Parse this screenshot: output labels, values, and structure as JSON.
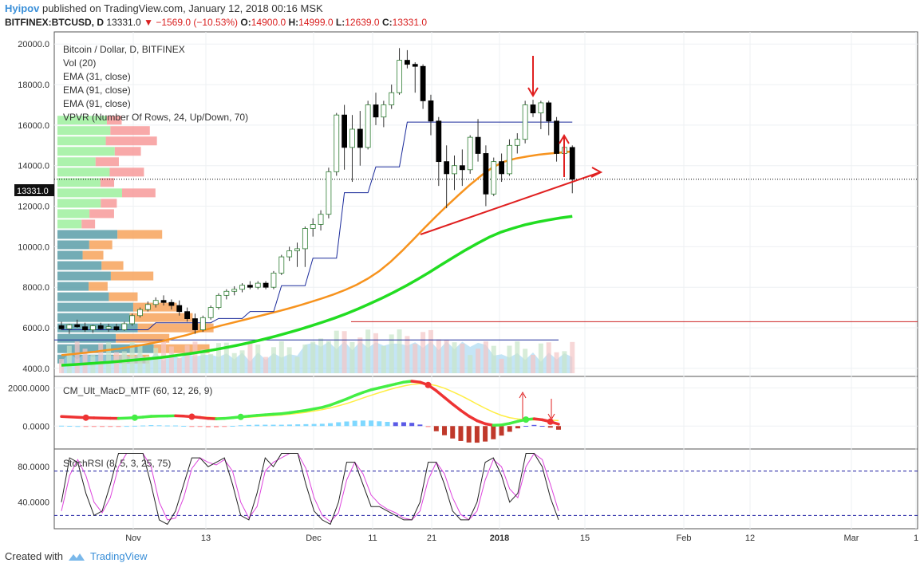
{
  "header": {
    "user": "Hyipov",
    "published_text": "published on TradingView.com, January 12, 2018 00:16 MSK",
    "symbol": "BITFINEX:BTCUSD, D",
    "last": "13331.0",
    "change": "−1569.0 (−10.53%)",
    "o_label": "O:",
    "o_value": "14900.0",
    "h_label": "H:",
    "h_value": "14999.0",
    "l_label": "L:",
    "l_value": "12639.0",
    "c_label": "C:",
    "c_value": "13331.0"
  },
  "legend": {
    "title": "Bitcoin / Dollar, D, BITFINEX",
    "vol": "Vol (20)",
    "ema1": "EMA (31, close)",
    "ema2": "EMA (91, close)",
    "ema3": "EMA (91, close)",
    "vpvr": "VPVR (Number Of Rows, 24, Up/Down, 70)"
  },
  "price_label": "13331.0",
  "footer": {
    "created": "Created with",
    "brand": "TradingView"
  },
  "colors": {
    "up": "#ffffff",
    "down": "#000000",
    "ema31": "#f7931e",
    "ema91": "#22dd22",
    "stepline": "#1a2a9a",
    "redline": "#cc2222",
    "macd_up": "#44ee44",
    "macd_down": "#ee3333",
    "signal": "#ffee44",
    "stoch_k": "#222222",
    "stoch_d": "#dd44dd",
    "dashed": "#1a1aa0"
  },
  "chart_data": [
    {
      "type": "candlestick",
      "title": "Bitcoin / Dollar, D, BITFINEX",
      "ylim": [
        3600,
        20600
      ],
      "y_ticks": [
        "20000.0",
        "18000.0",
        "16000.0",
        "14000.0",
        "12000.0",
        "10000.0",
        "8000.0",
        "6000.0",
        "4000.0"
      ],
      "x_ticks": [
        "Nov",
        "13",
        "Dec",
        "11",
        "21",
        "2018",
        "15",
        "Feb",
        "12",
        "Mar",
        "1"
      ],
      "last_price": 13331.0,
      "candles": [
        {
          "o": 6100,
          "h": 6300,
          "l": 5900,
          "c": 5950
        },
        {
          "o": 5950,
          "h": 6200,
          "l": 5700,
          "c": 6150
        },
        {
          "o": 6150,
          "h": 6400,
          "l": 6000,
          "c": 6050
        },
        {
          "o": 6050,
          "h": 6250,
          "l": 5800,
          "c": 5900
        },
        {
          "o": 5900,
          "h": 6150,
          "l": 5750,
          "c": 6100
        },
        {
          "o": 6100,
          "h": 6250,
          "l": 5900,
          "c": 5950
        },
        {
          "o": 5950,
          "h": 6200,
          "l": 5800,
          "c": 6050
        },
        {
          "o": 6050,
          "h": 6200,
          "l": 5850,
          "c": 5900
        },
        {
          "o": 5900,
          "h": 6300,
          "l": 5850,
          "c": 6200
        },
        {
          "o": 6200,
          "h": 6700,
          "l": 6100,
          "c": 6600
        },
        {
          "o": 6600,
          "h": 7000,
          "l": 6500,
          "c": 6900
        },
        {
          "o": 6900,
          "h": 7300,
          "l": 6800,
          "c": 7150
        },
        {
          "o": 7150,
          "h": 7500,
          "l": 7000,
          "c": 7350
        },
        {
          "o": 7350,
          "h": 7600,
          "l": 7100,
          "c": 7250
        },
        {
          "o": 7250,
          "h": 7400,
          "l": 6900,
          "c": 7100
        },
        {
          "o": 7100,
          "h": 7350,
          "l": 6600,
          "c": 6800
        },
        {
          "o": 6800,
          "h": 7000,
          "l": 6300,
          "c": 6450
        },
        {
          "o": 6450,
          "h": 6700,
          "l": 5700,
          "c": 5900
        },
        {
          "o": 5900,
          "h": 6600,
          "l": 5800,
          "c": 6500
        },
        {
          "o": 6500,
          "h": 7100,
          "l": 6400,
          "c": 7000
        },
        {
          "o": 7000,
          "h": 7700,
          "l": 6900,
          "c": 7600
        },
        {
          "o": 7600,
          "h": 7900,
          "l": 7400,
          "c": 7800
        },
        {
          "o": 7800,
          "h": 8050,
          "l": 7600,
          "c": 7900
        },
        {
          "o": 7900,
          "h": 8200,
          "l": 7750,
          "c": 8100
        },
        {
          "o": 8100,
          "h": 8300,
          "l": 7900,
          "c": 8000
        },
        {
          "o": 8000,
          "h": 8300,
          "l": 7900,
          "c": 8200
        },
        {
          "o": 8200,
          "h": 8300,
          "l": 7900,
          "c": 8000
        },
        {
          "o": 8000,
          "h": 8800,
          "l": 7900,
          "c": 8700
        },
        {
          "o": 8700,
          "h": 9600,
          "l": 8600,
          "c": 9500
        },
        {
          "o": 9500,
          "h": 10000,
          "l": 9300,
          "c": 9800
        },
        {
          "o": 9800,
          "h": 10200,
          "l": 9000,
          "c": 9900
        },
        {
          "o": 9900,
          "h": 11000,
          "l": 9000,
          "c": 10900
        },
        {
          "o": 10900,
          "h": 11400,
          "l": 10500,
          "c": 11100
        },
        {
          "o": 11100,
          "h": 11800,
          "l": 10800,
          "c": 11600
        },
        {
          "o": 11600,
          "h": 13900,
          "l": 11400,
          "c": 13700
        },
        {
          "o": 13700,
          "h": 16600,
          "l": 13500,
          "c": 16500
        },
        {
          "o": 16500,
          "h": 17000,
          "l": 13800,
          "c": 14900
        },
        {
          "o": 14900,
          "h": 16500,
          "l": 13200,
          "c": 15800
        },
        {
          "o": 15800,
          "h": 16700,
          "l": 14000,
          "c": 14900
        },
        {
          "o": 14900,
          "h": 17200,
          "l": 14800,
          "c": 17000
        },
        {
          "o": 17000,
          "h": 17600,
          "l": 16000,
          "c": 16400
        },
        {
          "o": 16400,
          "h": 17200,
          "l": 15900,
          "c": 17000
        },
        {
          "o": 17000,
          "h": 18000,
          "l": 16800,
          "c": 17600
        },
        {
          "o": 17600,
          "h": 19800,
          "l": 17500,
          "c": 19200
        },
        {
          "o": 19200,
          "h": 19700,
          "l": 18800,
          "c": 19000
        },
        {
          "o": 19000,
          "h": 19100,
          "l": 17600,
          "c": 18900
        },
        {
          "o": 18900,
          "h": 19000,
          "l": 16800,
          "c": 17200
        },
        {
          "o": 17200,
          "h": 17500,
          "l": 15500,
          "c": 16200
        },
        {
          "o": 16200,
          "h": 16400,
          "l": 13000,
          "c": 14200
        },
        {
          "o": 14200,
          "h": 15000,
          "l": 11900,
          "c": 13600
        },
        {
          "o": 13600,
          "h": 14500,
          "l": 12800,
          "c": 14000
        },
        {
          "o": 14000,
          "h": 14800,
          "l": 13000,
          "c": 13800
        },
        {
          "o": 13800,
          "h": 15500,
          "l": 13600,
          "c": 15400
        },
        {
          "o": 15400,
          "h": 16300,
          "l": 14200,
          "c": 14600
        },
        {
          "o": 14600,
          "h": 15000,
          "l": 12000,
          "c": 12600
        },
        {
          "o": 12600,
          "h": 14400,
          "l": 12500,
          "c": 14200
        },
        {
          "o": 14200,
          "h": 14600,
          "l": 13200,
          "c": 13600
        },
        {
          "o": 13600,
          "h": 15300,
          "l": 13500,
          "c": 15000
        },
        {
          "o": 15000,
          "h": 15600,
          "l": 14600,
          "c": 15300
        },
        {
          "o": 15300,
          "h": 17200,
          "l": 15100,
          "c": 17000
        },
        {
          "o": 17000,
          "h": 17250,
          "l": 16400,
          "c": 16600
        },
        {
          "o": 16600,
          "h": 17200,
          "l": 15800,
          "c": 17100
        },
        {
          "o": 17100,
          "h": 17200,
          "l": 15500,
          "c": 16200
        },
        {
          "o": 16200,
          "h": 16400,
          "l": 14200,
          "c": 14600
        },
        {
          "o": 14600,
          "h": 15000,
          "l": 13600,
          "c": 14900
        },
        {
          "o": 14900,
          "h": 14999,
          "l": 12639,
          "c": 13331
        }
      ],
      "ema31": [
        4650,
        4700,
        4760,
        4820,
        4900,
        4960,
        5050,
        5140,
        5240,
        5360,
        5500,
        5640,
        5800,
        5950,
        6100,
        6240,
        6380,
        6520,
        6660,
        6800,
        6950,
        7110,
        7280,
        7460,
        7650,
        7870,
        8120,
        8430,
        8800,
        9260,
        9790,
        10360,
        10940,
        11500,
        12040,
        12560,
        13060,
        13520,
        13920,
        14200,
        14350,
        14450,
        14540,
        14600,
        14650,
        14700
      ],
      "ema91": [
        4150,
        4180,
        4220,
        4260,
        4300,
        4350,
        4400,
        4450,
        4510,
        4580,
        4660,
        4740,
        4830,
        4930,
        5040,
        5160,
        5290,
        5430,
        5580,
        5740,
        5910,
        6090,
        6280,
        6480,
        6700,
        6940,
        7200,
        7470,
        7760,
        8070,
        8400,
        8750,
        9120,
        9480,
        9830,
        10160,
        10470,
        10720,
        10910,
        11080,
        11210,
        11320,
        11420,
        11500
      ],
      "volume_profile_rows": 24
    },
    {
      "type": "line",
      "title": "CM_Ult_MacD_MTF (60, 12, 26, 9)",
      "y_ticks": [
        "2000.0000",
        "0.0000"
      ],
      "ylim": [
        -1200,
        2600
      ],
      "series": [
        {
          "name": "MACD",
          "values": [
            500,
            480,
            460,
            440,
            430,
            420,
            410,
            400,
            420,
            440,
            470,
            510,
            520,
            530,
            540,
            520,
            490,
            450,
            400,
            380,
            400,
            440,
            480,
            520,
            560,
            590,
            620,
            650,
            700,
            760,
            820,
            900,
            980,
            1100,
            1260,
            1420,
            1600,
            1760,
            1900,
            2000,
            2100,
            2200,
            2300,
            2350,
            2300,
            2150,
            1850,
            1500,
            1150,
            820,
            520,
            280,
            120,
            40,
            60,
            140,
            250,
            340,
            380,
            330,
            230,
            100
          ]
        },
        {
          "name": "Signal",
          "values": [
            480,
            470,
            460,
            450,
            440,
            430,
            420,
            410,
            415,
            425,
            440,
            460,
            480,
            500,
            510,
            510,
            500,
            480,
            460,
            440,
            430,
            430,
            440,
            460,
            490,
            520,
            550,
            580,
            620,
            670,
            720,
            790,
            860,
            950,
            1060,
            1180,
            1320,
            1470,
            1610,
            1750,
            1880,
            2000,
            2100,
            2180,
            2220,
            2200,
            2120,
            1980,
            1800,
            1600,
            1380,
            1150,
            930,
            730,
            560,
            440,
            370,
            330,
            320,
            320,
            310,
            290
          ]
        },
        {
          "name": "Histogram",
          "values": [
            20,
            10,
            0,
            -10,
            -10,
            -10,
            -10,
            -10,
            5,
            15,
            30,
            50,
            40,
            30,
            30,
            10,
            -10,
            -30,
            -60,
            -60,
            -30,
            10,
            40,
            60,
            70,
            70,
            70,
            70,
            80,
            90,
            100,
            110,
            120,
            150,
            200,
            240,
            280,
            290,
            290,
            250,
            220,
            200,
            200,
            170,
            80,
            -50,
            -270,
            -480,
            -650,
            -780,
            -860,
            -870,
            -810,
            -690,
            -500,
            -300,
            -120,
            10,
            60,
            10,
            -80,
            -190
          ]
        }
      ]
    },
    {
      "type": "line",
      "title": "StochRSI (8, 5, 3, 25, 75)",
      "y_ticks": [
        "80.0000",
        "40.0000"
      ],
      "ylim": [
        10,
        100
      ],
      "bands": [
        75,
        25
      ],
      "series": [
        {
          "name": "K",
          "values": [
            40,
            90,
            85,
            50,
            25,
            30,
            60,
            95,
            95,
            95,
            95,
            60,
            20,
            15,
            30,
            60,
            90,
            90,
            80,
            85,
            90,
            60,
            25,
            20,
            50,
            90,
            80,
            95,
            95,
            95,
            60,
            30,
            20,
            15,
            40,
            85,
            85,
            60,
            35,
            35,
            30,
            25,
            20,
            20,
            40,
            85,
            85,
            60,
            30,
            20,
            20,
            40,
            85,
            90,
            70,
            40,
            50,
            95,
            95,
            80,
            45,
            20
          ]
        },
        {
          "name": "D",
          "values": [
            30,
            70,
            88,
            70,
            40,
            28,
            45,
            80,
            95,
            95,
            95,
            80,
            40,
            20,
            22,
            45,
            78,
            90,
            85,
            82,
            88,
            75,
            40,
            22,
            35,
            75,
            85,
            90,
            95,
            95,
            78,
            45,
            25,
            18,
            28,
            65,
            85,
            72,
            48,
            38,
            32,
            28,
            22,
            20,
            30,
            65,
            85,
            72,
            45,
            26,
            20,
            30,
            65,
            88,
            80,
            55,
            45,
            80,
            95,
            88,
            60,
            30
          ]
        }
      ]
    }
  ]
}
